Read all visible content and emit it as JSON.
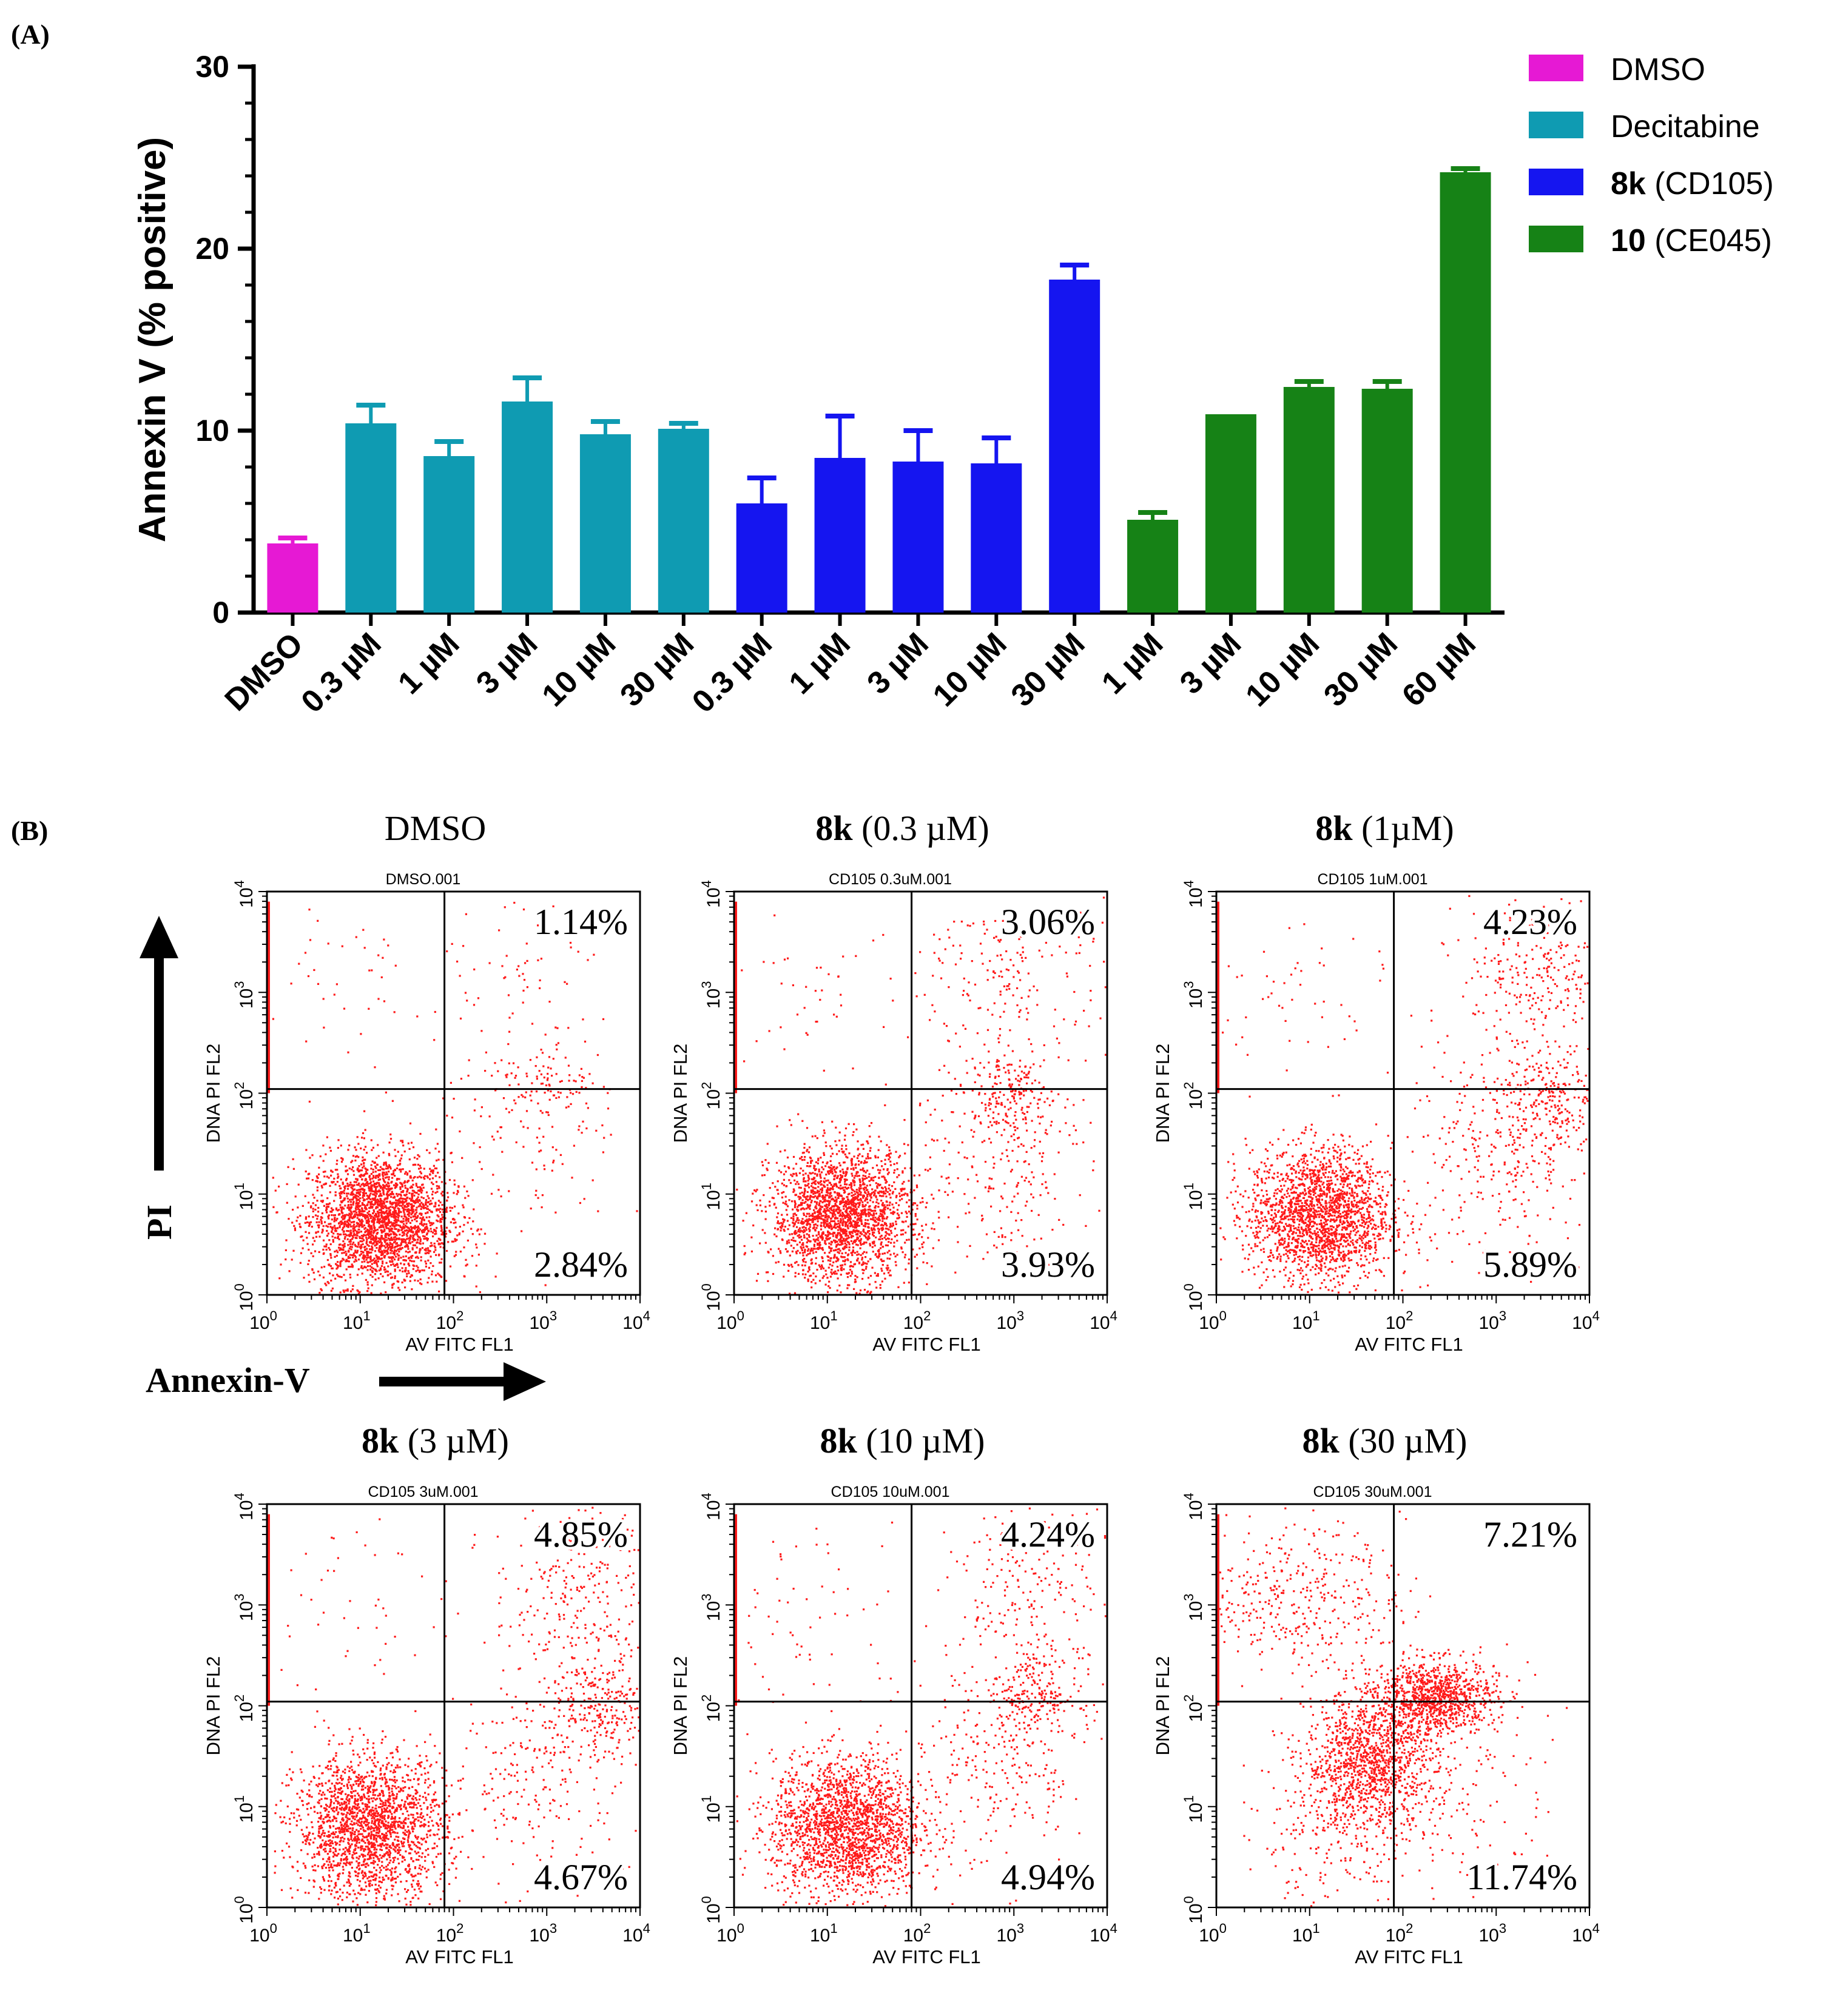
{
  "panel_a": {
    "label": "(A)",
    "chart_data": {
      "type": "bar",
      "ylabel": "Annexin V (% positive)",
      "ylim": [
        0,
        30
      ],
      "yticks": [
        0,
        10,
        20,
        30
      ],
      "bars": [
        {
          "label": "DMSO",
          "group": "DMSO",
          "value": 3.8,
          "error": 0.3
        },
        {
          "label": "0.3 µM",
          "group": "Decitabine",
          "value": 10.4,
          "error": 1.0
        },
        {
          "label": "1 µM",
          "group": "Decitabine",
          "value": 8.6,
          "error": 0.8
        },
        {
          "label": "3 µM",
          "group": "Decitabine",
          "value": 11.6,
          "error": 1.3
        },
        {
          "label": "10 µM",
          "group": "Decitabine",
          "value": 9.8,
          "error": 0.7
        },
        {
          "label": "30 µM",
          "group": "Decitabine",
          "value": 10.1,
          "error": 0.3
        },
        {
          "label": "0.3 µM",
          "group": "8k",
          "value": 6.0,
          "error": 1.4
        },
        {
          "label": "1 µM",
          "group": "8k",
          "value": 8.5,
          "error": 2.3
        },
        {
          "label": "3 µM",
          "group": "8k",
          "value": 8.3,
          "error": 1.7
        },
        {
          "label": "10 µM",
          "group": "8k",
          "value": 8.2,
          "error": 1.4
        },
        {
          "label": "30 µM",
          "group": "8k",
          "value": 18.3,
          "error": 0.8
        },
        {
          "label": "1 µM",
          "group": "10",
          "value": 5.1,
          "error": 0.4
        },
        {
          "label": "3 µM",
          "group": "10",
          "value": 10.9,
          "error": 0.0
        },
        {
          "label": "10 µM",
          "group": "10",
          "value": 12.4,
          "error": 0.3
        },
        {
          "label": "30 µM",
          "group": "10",
          "value": 12.3,
          "error": 0.4
        },
        {
          "label": "60 µM",
          "group": "10",
          "value": 24.2,
          "error": 0.2
        }
      ],
      "legend": [
        {
          "bold": "",
          "text": "DMSO",
          "color": "#e619d4",
          "key": "DMSO"
        },
        {
          "bold": "",
          "text": "Decitabine",
          "color": "#0f9bb2",
          "key": "Decitabine"
        },
        {
          "bold": "8k",
          "text": " (CD105)",
          "color": "#1515f0",
          "key": "8k"
        },
        {
          "bold": "10",
          "text": " (CE045)",
          "color": "#168216",
          "key": "10"
        }
      ],
      "colors": {
        "DMSO": "#e619d4",
        "Decitabine": "#0f9bb2",
        "8k": "#1515f0",
        "10": "#168216"
      }
    }
  },
  "panel_b": {
    "label": "(B)",
    "y_arrow_label": "PI",
    "x_arrow_label": "Annexin-V",
    "chart_data": {
      "type": "scatter",
      "xlabel": "AV FITC FL1",
      "ylabel": "DNA PI FL2",
      "axis_scale": "log",
      "xlim": [
        1,
        10000
      ],
      "ylim": [
        1,
        10000
      ],
      "tick_base": "10",
      "tick_exponents": [
        "0",
        "1",
        "2",
        "3",
        "4"
      ],
      "point_color": "#ff1a1a",
      "plots": [
        {
          "title_bold": "",
          "title_rest": "DMSO",
          "file": "DMSO.001",
          "upper_right": "1.14%",
          "lower_right": "2.84%",
          "gate_x": 80,
          "gate_y": 110
        },
        {
          "title_bold": "8k",
          "title_rest": " (0.3 µM)",
          "file": "CD105 0.3uM.001",
          "upper_right": "3.06%",
          "lower_right": "3.93%",
          "gate_x": 80,
          "gate_y": 110
        },
        {
          "title_bold": "8k",
          "title_rest": " (1µM)",
          "file": "CD105 1uM.001",
          "upper_right": "4.23%",
          "lower_right": "5.89%",
          "gate_x": 80,
          "gate_y": 110
        },
        {
          "title_bold": "8k",
          "title_rest": " (3 µM)",
          "file": "CD105 3uM.001",
          "upper_right": "4.85%",
          "lower_right": "4.67%",
          "gate_x": 80,
          "gate_y": 110
        },
        {
          "title_bold": "8k",
          "title_rest": " (10 µM)",
          "file": "CD105 10uM.001",
          "upper_right": "4.24%",
          "lower_right": "4.94%",
          "gate_x": 80,
          "gate_y": 110
        },
        {
          "title_bold": "8k",
          "title_rest": " (30 µM)",
          "file": "CD105 30uM.001",
          "upper_right": "7.21%",
          "lower_right": "11.74%",
          "gate_x": 80,
          "gate_y": 110
        }
      ]
    }
  }
}
